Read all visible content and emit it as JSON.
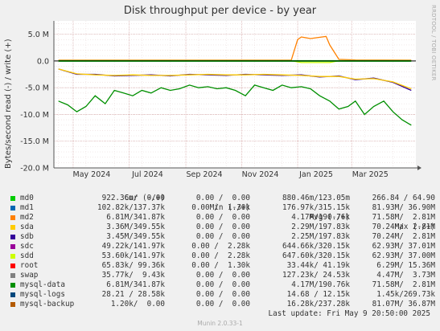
{
  "title": "Disk throughput per device - by year",
  "side_label": "RRDTOOL / TOBI OETIKER",
  "legend_header": {
    "cur": "Cur (-/+)",
    "min": "Min (-/+)",
    "avg": "Avg (-/+)",
    "max": "Max (-/+)"
  },
  "legend": [
    {
      "name": "md0",
      "color": "#00cc00",
      "cur": "922.36m/  0.00",
      "min": "0.00 /  0.00",
      "avg": "880.46m/123.05m",
      "max": "266.84 / 64.90"
    },
    {
      "name": "md1",
      "color": "#0066b3",
      "cur": "102.82k/137.37k",
      "min": "0.00 /  1.30k",
      "avg": "176.97k/315.15k",
      "max": "81.93M/ 36.90M"
    },
    {
      "name": "md2",
      "color": "#ff8000",
      "cur": "6.81M/341.87k",
      "min": "0.00 /  0.00",
      "avg": "4.17M/190.76k",
      "max": "71.58M/  2.81M"
    },
    {
      "name": "sda",
      "color": "#ffcc00",
      "cur": "3.36M/349.55k",
      "min": "0.00 /  0.00",
      "avg": "2.29M/197.83k",
      "max": "70.24M/  2.81M"
    },
    {
      "name": "sdb",
      "color": "#330099",
      "cur": "3.45M/349.55k",
      "min": "0.00 /  0.00",
      "avg": "2.25M/197.83k",
      "max": "70.24M/  2.81M"
    },
    {
      "name": "sdc",
      "color": "#990099",
      "cur": "49.22k/141.97k",
      "min": "0.00 /  2.28k",
      "avg": "644.66k/320.15k",
      "max": "62.93M/ 37.01M"
    },
    {
      "name": "sdd",
      "color": "#ccff00",
      "cur": "53.60k/141.97k",
      "min": "0.00 /  2.28k",
      "avg": "647.60k/320.15k",
      "max": "62.93M/ 37.00M"
    },
    {
      "name": "root",
      "color": "#ff0000",
      "cur": "65.83k/ 99.36k",
      "min": "0.00 /  1.30k",
      "avg": "33.44k/ 41.19k",
      "max": "6.29M/ 15.36M"
    },
    {
      "name": "swap",
      "color": "#808080",
      "cur": "35.77k/  9.43k",
      "min": "0.00 /  0.00",
      "avg": "127.23k/ 24.53k",
      "max": "4.47M/  3.73M"
    },
    {
      "name": "mysql-data",
      "color": "#008f00",
      "cur": "6.81M/341.87k",
      "min": "0.00 /  0.00",
      "avg": "4.17M/190.76k",
      "max": "71.58M/  2.81M"
    },
    {
      "name": "mysql-logs",
      "color": "#00487d",
      "cur": "28.21 / 28.58k",
      "min": "0.00 /  0.00",
      "avg": "14.68 / 12.15k",
      "max": "1.45k/269.73k"
    },
    {
      "name": "mysql-backup",
      "color": "#b35a00",
      "cur": "1.20k/  0.00",
      "min": "0.00 /  0.00",
      "avg": "16.28k/237.28k",
      "max": "81.07M/ 36.87M"
    }
  ],
  "last_update": "Last update:  Fri May  9 20:50:00 2025",
  "version": "Munin 2.0.33-1",
  "chart_data": {
    "type": "line",
    "title": "Disk throughput per device - by year",
    "ylabel": "Bytes/second read (-) / write (+)",
    "ylim": [
      -20000000,
      7500000
    ],
    "yticks": [
      {
        "value": 5000000,
        "label": "5.0 M"
      },
      {
        "value": 0,
        "label": "0.0"
      },
      {
        "value": -5000000,
        "label": "-5.0 M"
      },
      {
        "value": -10000000,
        "label": "-10.0 M"
      },
      {
        "value": -15000000,
        "label": "-15.0 M"
      },
      {
        "value": -20000000,
        "label": "-20.0 M"
      }
    ],
    "xlim": [
      "2024-04-10",
      "2025-05-10"
    ],
    "xticks": [
      {
        "value": "2024-05-01",
        "label": "May 2024"
      },
      {
        "value": "2024-07-01",
        "label": "Jul 2024"
      },
      {
        "value": "2024-09-01",
        "label": "Sep 2024"
      },
      {
        "value": "2024-11-01",
        "label": "Nov 2024"
      },
      {
        "value": "2025-01-01",
        "label": "Jan 2025"
      },
      {
        "value": "2025-03-01",
        "label": "Mar 2025"
      }
    ],
    "grid": true,
    "series": [
      {
        "name": "mysql-data",
        "color": "#008f00",
        "x": [
          "2024-04-15",
          "2024-04-25",
          "2024-05-05",
          "2024-05-15",
          "2024-05-25",
          "2024-06-05",
          "2024-06-15",
          "2024-06-25",
          "2024-07-05",
          "2024-07-15",
          "2024-07-25",
          "2024-08-05",
          "2024-08-15",
          "2024-08-25",
          "2024-09-05",
          "2024-09-15",
          "2024-09-25",
          "2024-10-05",
          "2024-10-15",
          "2024-10-25",
          "2024-11-05",
          "2024-11-15",
          "2024-11-25",
          "2024-12-05",
          "2024-12-15",
          "2024-12-25",
          "2025-01-05",
          "2025-01-15",
          "2025-01-25",
          "2025-02-05",
          "2025-02-15",
          "2025-02-25",
          "2025-03-05",
          "2025-03-15",
          "2025-03-25",
          "2025-04-05",
          "2025-04-15",
          "2025-04-25",
          "2025-05-05"
        ],
        "y": [
          -7500000,
          -8200000,
          -9500000,
          -8500000,
          -6500000,
          -8000000,
          -5500000,
          -6000000,
          -6500000,
          -5500000,
          -6000000,
          -5000000,
          -5500000,
          -5200000,
          -4500000,
          -5000000,
          -4800000,
          -5200000,
          -5000000,
          -5500000,
          -6500000,
          -4500000,
          -5000000,
          -5500000,
          -4500000,
          -5000000,
          -4800000,
          -5200000,
          -6500000,
          -7500000,
          -9000000,
          -8500000,
          -7500000,
          -10000000,
          -8500000,
          -7500000,
          -9500000,
          -11000000,
          -12000000
        ]
      },
      {
        "name": "sdb",
        "color": "#330099",
        "x": [
          "2024-04-15",
          "2024-05-05",
          "2024-05-25",
          "2024-06-15",
          "2024-07-05",
          "2024-07-25",
          "2024-08-15",
          "2024-09-05",
          "2024-09-25",
          "2024-10-15",
          "2024-11-05",
          "2024-11-25",
          "2024-12-15",
          "2025-01-05",
          "2025-01-25",
          "2025-02-15",
          "2025-03-05",
          "2025-03-25",
          "2025-04-15",
          "2025-05-05"
        ],
        "y": [
          -1500000,
          -2500000,
          -2500000,
          -2800000,
          -2700000,
          -2600000,
          -2800000,
          -2500000,
          -2600000,
          -2700000,
          -2500000,
          -2600000,
          -2700000,
          -2600000,
          -3000000,
          -2800000,
          -3500000,
          -3200000,
          -4000000,
          -5500000
        ]
      },
      {
        "name": "sda",
        "color": "#ffcc00",
        "x": [
          "2024-04-15",
          "2024-05-05",
          "2024-05-25",
          "2024-06-15",
          "2024-07-05",
          "2024-07-25",
          "2024-08-15",
          "2024-09-05",
          "2024-09-25",
          "2024-10-15",
          "2024-11-05",
          "2024-11-25",
          "2024-12-15",
          "2025-01-05",
          "2025-01-25",
          "2025-02-15",
          "2025-03-05",
          "2025-03-25",
          "2025-04-15",
          "2025-05-05"
        ],
        "y": [
          -1500000,
          -2400000,
          -2600000,
          -2700000,
          -2600000,
          -2700000,
          -2700000,
          -2600000,
          -2500000,
          -2600000,
          -2600000,
          -2500000,
          -2600000,
          -2700000,
          -2900000,
          -2900000,
          -3400000,
          -3300000,
          -3900000,
          -5200000
        ]
      },
      {
        "name": "md2",
        "color": "#ff8000",
        "x": [
          "2024-04-15",
          "2024-12-25",
          "2025-01-01",
          "2025-01-05",
          "2025-01-15",
          "2025-02-01",
          "2025-02-05",
          "2025-02-15",
          "2025-03-05",
          "2025-05-05"
        ],
        "y": [
          150000,
          150000,
          4000000,
          4500000,
          4200000,
          4600000,
          3000000,
          300000,
          200000,
          150000
        ]
      },
      {
        "name": "sdd",
        "color": "#ccff00",
        "x": [
          "2024-04-15",
          "2024-12-25",
          "2025-01-05",
          "2025-02-05",
          "2025-02-15",
          "2025-05-05"
        ],
        "y": [
          50000,
          50000,
          -300000,
          -300000,
          50000,
          50000
        ]
      },
      {
        "name": "md0",
        "color": "#00cc00",
        "x": [
          "2024-04-15",
          "2025-05-05"
        ],
        "y": [
          0,
          0
        ]
      }
    ]
  }
}
